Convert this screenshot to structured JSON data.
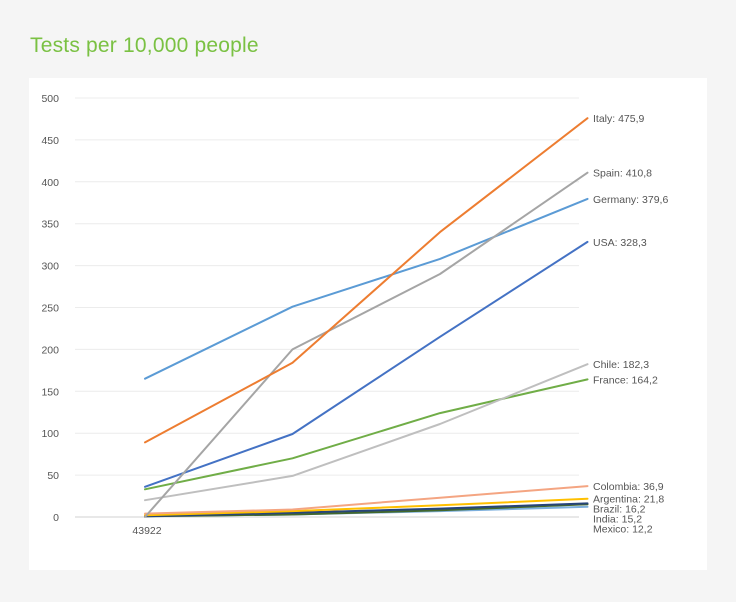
{
  "page": {
    "title": "Tests per 10,000 people"
  },
  "chart_data": {
    "type": "line",
    "title": "Tests per 10,000 people",
    "xlabel": "",
    "ylabel": "",
    "ylim": [
      0,
      500
    ],
    "yticks": [
      0,
      50,
      100,
      150,
      200,
      250,
      300,
      350,
      400,
      450,
      500
    ],
    "x_tick_labels": [
      "43922"
    ],
    "grid": true,
    "legend": "end-of-line labels",
    "series": [
      {
        "name": "Italy",
        "label": "Italy: 475,9",
        "color": "#ed7d31",
        "values": [
          89,
          184,
          340,
          475.9
        ]
      },
      {
        "name": "Spain",
        "label": "Spain: 410,8",
        "color": "#a5a5a5",
        "values": [
          0,
          200,
          290,
          410.8
        ]
      },
      {
        "name": "Germany",
        "label": "Germany: 379,6",
        "color": "#5b9bd5",
        "values": [
          165,
          251,
          308,
          379.6
        ]
      },
      {
        "name": "USA",
        "label": "USA: 328,3",
        "color": "#4472c4",
        "values": [
          36,
          99,
          215,
          328.3
        ]
      },
      {
        "name": "Chile",
        "label": "Chile: 182,3",
        "color": "#bfbfbf",
        "values": [
          20,
          49,
          111,
          182.3
        ]
      },
      {
        "name": "France",
        "label": "France: 164,2",
        "color": "#70ad47",
        "values": [
          33,
          70,
          124,
          164.2
        ]
      },
      {
        "name": "Colombia",
        "label": "Colombia: 36,9",
        "color": "#f4a582",
        "values": [
          4,
          9,
          23,
          36.9
        ]
      },
      {
        "name": "Argentina",
        "label": "Argentina: 21,8",
        "color": "#ffc000",
        "values": [
          2,
          7,
          14,
          21.8
        ]
      },
      {
        "name": "Brazil",
        "label": "Brazil: 16,2",
        "color": "#264478",
        "values": [
          1,
          5,
          10,
          16.2
        ]
      },
      {
        "name": "India",
        "label": "India: 15,2",
        "color": "#43682b",
        "values": [
          1,
          3,
          8,
          15.2
        ]
      },
      {
        "name": "Mexico",
        "label": "Mexico: 12,2",
        "color": "#7cafdd",
        "values": [
          1,
          3,
          7,
          12.2
        ]
      }
    ]
  }
}
